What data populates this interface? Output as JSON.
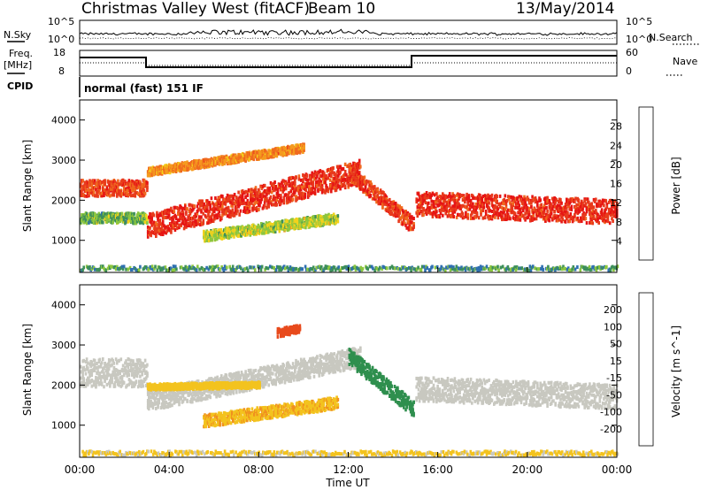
{
  "header": {
    "station": "Christmas Valley West (fitACF)",
    "beam": "Beam 10",
    "date": "13/May/2014"
  },
  "left_labels": {
    "nsky": "N.Sky",
    "freq_line1": "Freq.",
    "freq_line2": "[MHz]",
    "cpid": "CPID"
  },
  "right_labels": {
    "nsearch": "N.Search",
    "nave": "Nave"
  },
  "noise_panel": {
    "left_ticks": [
      "10^5",
      "10^0"
    ],
    "right_ticks": [
      "10^5",
      "10^0"
    ]
  },
  "freq_panel": {
    "left_ticks": [
      "18",
      "8"
    ],
    "right_ticks": [
      "60",
      "0"
    ]
  },
  "cpid_text": "normal (fast) 151 IF",
  "colors": {
    "power": [
      "#1f1fe6",
      "#2e6fb0",
      "#3d8f5a",
      "#8cc63f",
      "#f3d21c",
      "#f59a1e",
      "#f06a1e",
      "#e83a1c",
      "#e61414"
    ],
    "velocity": [
      "#1e2fb8",
      "#2e6fb0",
      "#2f8f4e",
      "#7fcc3a",
      "#c8c8c0",
      "#f3c31e",
      "#f0901e",
      "#e84a1c",
      "#e61414"
    ]
  },
  "chart_data": [
    {
      "type": "heatmap",
      "name": "power",
      "ylabel": "Slant Range [km]",
      "y_ticks": [
        "1000",
        "2000",
        "3000",
        "4000"
      ],
      "ylim": [
        200,
        4500
      ],
      "xlim": [
        0,
        24
      ],
      "colorbar_label": "Power [dB]",
      "colorbar_ticks": [
        "4",
        "8",
        "12",
        "16",
        "20",
        "24",
        "28"
      ],
      "colorbar_range": [
        0,
        32
      ],
      "bands": [
        {
          "name": "main",
          "start": 0,
          "end": 3.0,
          "r0": 2300,
          "r1": 2300,
          "width": 400,
          "level": 26
        },
        {
          "name": "lower-early",
          "start": 0,
          "end": 3.0,
          "r0": 1550,
          "r1": 1550,
          "width": 250,
          "level": 11
        },
        {
          "name": "main2",
          "start": 3.0,
          "end": 12.5,
          "r0": 1350,
          "r1": 2700,
          "width": 600,
          "level": 28
        },
        {
          "name": "upper",
          "start": 3.0,
          "end": 10.0,
          "r0": 2700,
          "r1": 3300,
          "width": 200,
          "level": 21
        },
        {
          "name": "E-region",
          "start": 5.5,
          "end": 11.5,
          "r0": 1100,
          "r1": 1550,
          "width": 250,
          "level": 14
        },
        {
          "name": "descending",
          "start": 12.0,
          "end": 14.9,
          "r0": 2700,
          "r1": 1350,
          "width": 400,
          "level": 27
        },
        {
          "name": "evening",
          "start": 15.0,
          "end": 24.0,
          "r0": 1900,
          "r1": 1700,
          "width": 600,
          "level": 28
        },
        {
          "name": "ground",
          "start": 0,
          "end": 24,
          "r0": 300,
          "r1": 300,
          "width": 100,
          "level": 9
        }
      ]
    },
    {
      "type": "heatmap",
      "name": "velocity",
      "ylabel": "Slant Range [km]",
      "y_ticks": [
        "1000",
        "2000",
        "3000",
        "4000"
      ],
      "ylim": [
        200,
        4500
      ],
      "xlim": [
        0,
        24
      ],
      "xlabel": "Time UT",
      "x_ticks": [
        "00:00",
        "04:00",
        "08:00",
        "12:00",
        "16:00",
        "20:00",
        "00:00"
      ],
      "colorbar_label": "Velocity [m s^-1]",
      "colorbar_ticks": [
        "200",
        "100",
        "50",
        "15",
        "-15",
        "-50",
        "-100",
        "-200"
      ],
      "bands": [
        {
          "name": "main",
          "start": 0,
          "end": 3.0,
          "r0": 2300,
          "r1": 2300,
          "width": 700,
          "level": -5
        },
        {
          "name": "main2",
          "start": 3.0,
          "end": 12.5,
          "r0": 1600,
          "r1": 2700,
          "width": 500,
          "level": -5
        },
        {
          "name": "orange-mid",
          "start": 3.0,
          "end": 8.0,
          "r0": 1950,
          "r1": 2000,
          "width": 150,
          "level": -40
        },
        {
          "name": "E-region",
          "start": 5.5,
          "end": 11.5,
          "r0": 1100,
          "r1": 1550,
          "width": 300,
          "level": -45
        },
        {
          "name": "red-patch",
          "start": 8.8,
          "end": 9.8,
          "r0": 3300,
          "r1": 3400,
          "width": 200,
          "level": -180
        },
        {
          "name": "descending",
          "start": 12.0,
          "end": 14.9,
          "r0": 2700,
          "r1": 1400,
          "width": 400,
          "level": 60
        },
        {
          "name": "evening",
          "start": 15.0,
          "end": 24.0,
          "r0": 1900,
          "r1": 1700,
          "width": 600,
          "level": 0
        },
        {
          "name": "ground",
          "start": 0,
          "end": 24,
          "r0": 300,
          "r1": 300,
          "width": 100,
          "level": -20
        }
      ]
    }
  ]
}
